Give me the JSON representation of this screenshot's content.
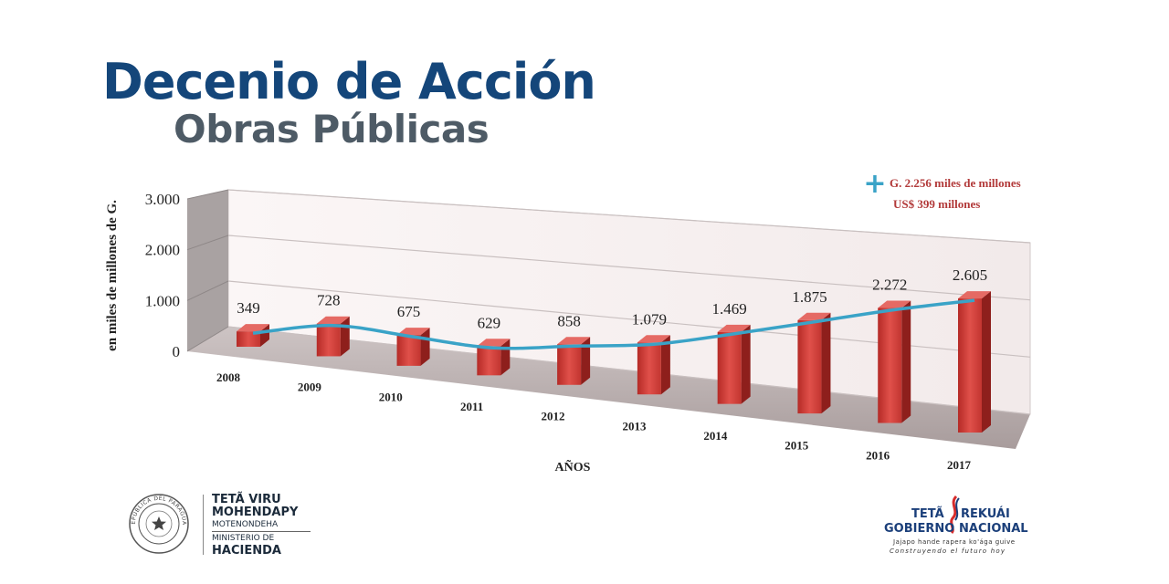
{
  "title": "Decenio de Acción",
  "subtitle": "Obras Públicas",
  "chart_data": {
    "type": "bar",
    "categories": [
      "2008",
      "2009",
      "2010",
      "2011",
      "2012",
      "2013",
      "2014",
      "2015",
      "2016",
      "2017"
    ],
    "values": [
      349,
      728,
      675,
      629,
      858,
      1079,
      1469,
      1875,
      2272,
      2605
    ],
    "value_labels": [
      "349",
      "728",
      "675",
      "629",
      "858",
      "1.079",
      "1.469",
      "1.875",
      "2.272",
      "2.605"
    ],
    "trend_line": true,
    "ylim": [
      0,
      3000
    ],
    "y_ticks": [
      "0",
      "1.000",
      "2.000",
      "3.000"
    ],
    "xlabel": "AÑOS",
    "ylabel": "en miles de millones de G.",
    "annotation": {
      "symbol": "+",
      "line1": "G. 2.256 miles de millones",
      "line2": "US$ 399 millones"
    },
    "bar_color": "#c9302c",
    "line_color": "#3aa3c7"
  },
  "footer": {
    "ministry": {
      "line1": "TETÃ VIRU",
      "line2": "MOHENDAPY",
      "line3": "MOTENONDEHA",
      "line4": "MINISTERIO DE",
      "line5": "HACIENDA",
      "seal_text": "REPÚBLICA DEL PARAGUAY"
    },
    "government": {
      "w1": "TETÃ",
      "w2": "REKUÁI",
      "w3": "GOBIERNO",
      "w4": "NACIONAL",
      "tagline1": "Jajapo hande rapera ko'ága guive",
      "tagline2": "Construyendo el futuro hoy"
    }
  },
  "colors": {
    "title": "#14467a",
    "subtitle": "#4e5b66"
  }
}
